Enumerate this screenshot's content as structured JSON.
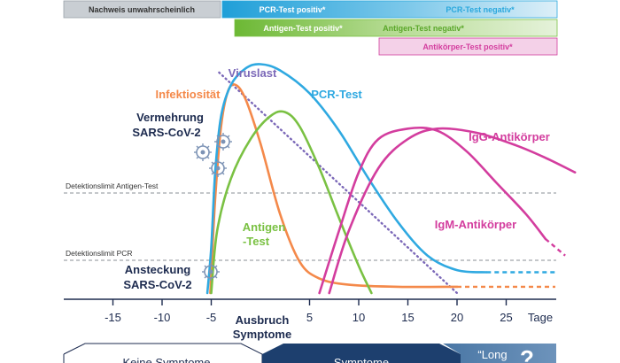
{
  "chart_data": {
    "type": "line",
    "x": {
      "ticks": [
        -15,
        -10,
        -5,
        5,
        10,
        15,
        20,
        25
      ],
      "tick_labels": [
        "-15",
        "-10",
        "-5",
        "5",
        "10",
        "15",
        "20",
        "25"
      ],
      "range": [
        -22,
        32
      ],
      "unit": "Tage",
      "zero_label": [
        "Ausbruch",
        "Symptome"
      ]
    },
    "thresholds": [
      {
        "label": "Detektionslimit  Antigen-Test",
        "value": 0.62
      },
      {
        "label": "Detektionslimit  PCR",
        "value": 0.24
      }
    ],
    "series": [
      {
        "name": "Viruslast",
        "color": "#7b68b8",
        "dashed": true,
        "points": [
          [
            -4.2,
            1.06
          ],
          [
            20,
            0.0
          ]
        ]
      },
      {
        "name": "Infektiosität",
        "color": "#f4894a",
        "points": [
          [
            -5.1,
            0.0
          ],
          [
            -4.6,
            0.45
          ],
          [
            -4.0,
            0.8
          ],
          [
            -3.3,
            0.97
          ],
          [
            -2.5,
            1.0
          ],
          [
            -1.5,
            0.93
          ],
          [
            0,
            0.72
          ],
          [
            2,
            0.38
          ],
          [
            4,
            0.15
          ],
          [
            6,
            0.07
          ],
          [
            9,
            0.04
          ],
          [
            14,
            0.03
          ],
          [
            20,
            0.03
          ]
        ]
      },
      {
        "name": "PCR-Test",
        "color": "#2fa9e1",
        "points": [
          [
            -5.4,
            0.0
          ],
          [
            -5.0,
            0.22
          ],
          [
            -4.6,
            0.58
          ],
          [
            -4.0,
            0.85
          ],
          [
            -3.0,
            1.0
          ],
          [
            -1.5,
            1.08
          ],
          [
            0,
            1.1
          ],
          [
            2,
            1.07
          ],
          [
            5,
            0.96
          ],
          [
            8,
            0.78
          ],
          [
            11,
            0.55
          ],
          [
            14,
            0.34
          ],
          [
            17,
            0.18
          ],
          [
            20,
            0.11
          ],
          [
            23,
            0.1
          ]
        ]
      },
      {
        "name": "Antigen-Test",
        "color": "#7ac143",
        "points": [
          [
            -5.0,
            0.0
          ],
          [
            -4.4,
            0.3
          ],
          [
            -3.0,
            0.55
          ],
          [
            -1.0,
            0.74
          ],
          [
            1,
            0.85
          ],
          [
            2.5,
            0.87
          ],
          [
            4,
            0.8
          ],
          [
            6,
            0.6
          ],
          [
            8,
            0.36
          ],
          [
            10,
            0.13
          ],
          [
            11.3,
            0.0
          ]
        ]
      },
      {
        "name": "IgG-Antikörper",
        "color": "#d33d9e",
        "points": [
          [
            7,
            0.0
          ],
          [
            9,
            0.3
          ],
          [
            12,
            0.6
          ],
          [
            15,
            0.74
          ],
          [
            18,
            0.79
          ],
          [
            22,
            0.77
          ],
          [
            26,
            0.71
          ],
          [
            29,
            0.65
          ],
          [
            32,
            0.58
          ]
        ]
      },
      {
        "name": "IgM-Antikörper",
        "color": "#d33d9e",
        "points": [
          [
            6,
            0.0
          ],
          [
            8,
            0.3
          ],
          [
            10,
            0.58
          ],
          [
            12,
            0.74
          ],
          [
            15,
            0.79
          ],
          [
            18,
            0.78
          ],
          [
            21,
            0.68
          ],
          [
            24,
            0.53
          ],
          [
            27,
            0.38
          ],
          [
            29,
            0.26
          ]
        ]
      }
    ],
    "annotations": [
      "Vermehrung",
      "SARS-CoV-2",
      "Ansteckung",
      "SARS-CoV-2"
    ],
    "grid": false
  },
  "bars": [
    {
      "label": "Nachweis unwahrscheinlich",
      "color": "#c9ced3",
      "text_color": "#333333"
    },
    {
      "label": "PCR-Test positiv*",
      "color": "#2aa8dd",
      "text_color": "#ffffff"
    },
    {
      "label": "PCR-Test negativ*",
      "color": "#d6ecf7",
      "text_color": "#2aa8dd"
    },
    {
      "label": "Antigen-Test positiv*",
      "color": "#7ac143",
      "text_color": "#ffffff"
    },
    {
      "label": "Antigen-Test negativ*",
      "color": "#e1f0d3",
      "text_color": "#5aa72a"
    },
    {
      "label": "Antikörper-Test positiv*",
      "color": "#f4d1e8",
      "text_color": "#d33d9e"
    }
  ],
  "bottom_bands": [
    {
      "label": "Keine Symptome"
    },
    {
      "label": "Symptome"
    },
    {
      "label": "“Long"
    },
    {
      "label": "?"
    }
  ]
}
